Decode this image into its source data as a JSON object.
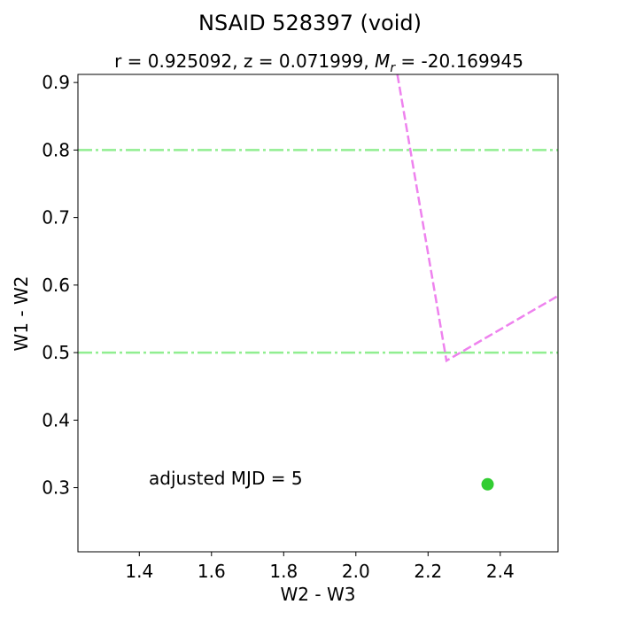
{
  "chart_data": {
    "type": "scatter",
    "title": "NSAID 528397 (void)",
    "subtitle": {
      "prefix": "r = 0.925092,  z = 0.071999,  ",
      "mag_symbol": "M",
      "mag_subscript": "r",
      "suffix": " = -20.169945"
    },
    "xlabel": "W2 - W3",
    "ylabel": "W1 - W2",
    "xlim": [
      1.23,
      2.56
    ],
    "ylim": [
      0.205,
      0.912
    ],
    "x_ticks": [
      1.4,
      1.6,
      1.8,
      2.0,
      2.2,
      2.4
    ],
    "x_tick_labels": [
      "1.4",
      "1.6",
      "1.8",
      "2.0",
      "2.2",
      "2.4"
    ],
    "y_ticks": [
      0.3,
      0.4,
      0.5,
      0.6,
      0.7,
      0.8,
      0.9
    ],
    "y_tick_labels": [
      "0.3",
      "0.4",
      "0.5",
      "0.6",
      "0.7",
      "0.8",
      "0.9"
    ],
    "grid": false,
    "hlines": [
      {
        "y": 0.8,
        "color": "#90ee90",
        "style": "dashdot"
      },
      {
        "y": 0.5,
        "color": "#90ee90",
        "style": "dashdot"
      }
    ],
    "boundary_line": {
      "color": "#ee82ee",
      "style": "dashed",
      "points": [
        [
          2.115,
          0.912
        ],
        [
          2.251,
          0.488
        ],
        [
          2.56,
          0.584
        ]
      ]
    },
    "points": [
      {
        "x": 2.365,
        "y": 0.305,
        "color": "#32cd32"
      }
    ],
    "annotation": "adjusted MJD = 5"
  }
}
